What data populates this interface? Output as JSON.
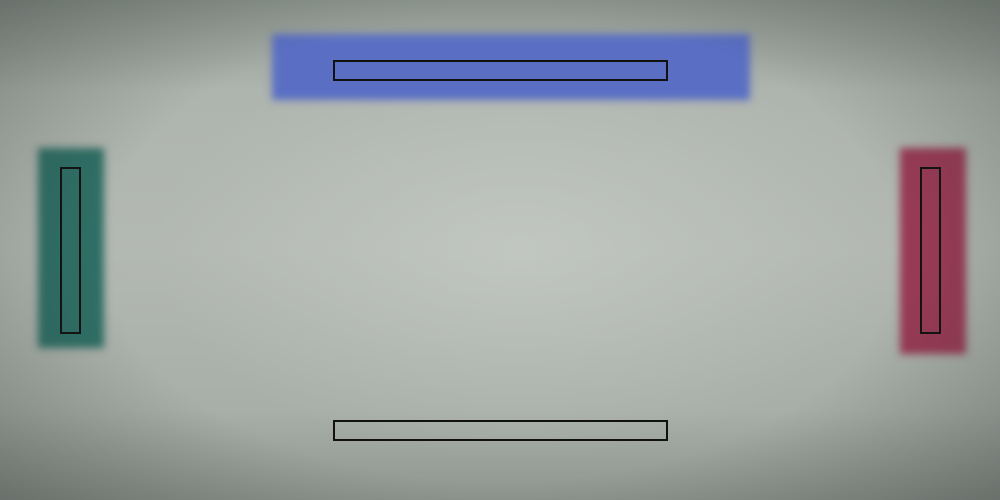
{
  "game": {
    "zones": {
      "top": {
        "color": "#5a6fc4"
      },
      "left": {
        "color": "#2f6f66"
      },
      "right": {
        "color": "#9a3a57"
      },
      "bottom": {
        "color": ""
      }
    },
    "paddles": [
      {
        "side": "top",
        "outline_color": "#111111"
      },
      {
        "side": "bottom",
        "outline_color": "#111111"
      },
      {
        "side": "left",
        "outline_color": "#111111"
      },
      {
        "side": "right",
        "outline_color": "#111111"
      }
    ]
  }
}
